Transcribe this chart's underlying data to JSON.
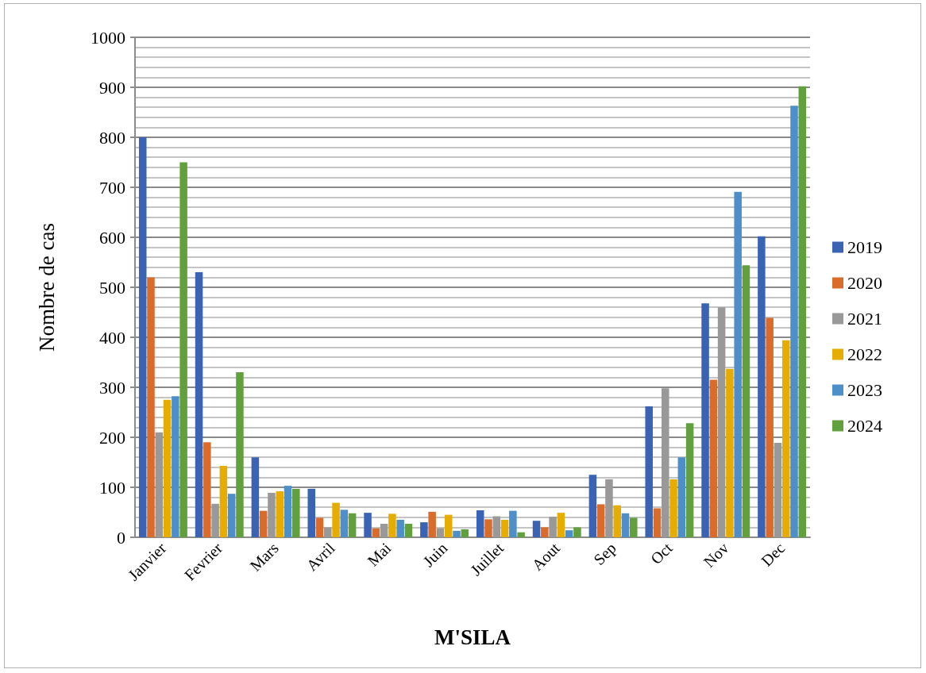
{
  "chart_data": {
    "type": "bar",
    "xlabel": "M'SILA",
    "ylabel": "Nombre de cas",
    "categories": [
      "Janvier",
      "Fevrier",
      "Mars",
      "Avril",
      "Mai",
      "Juin",
      "Juillet",
      "Aout",
      "Sep",
      "Oct",
      "Nov",
      "Dec"
    ],
    "series": [
      {
        "name": "2019",
        "color": "#3a63b3",
        "values": [
          800,
          530,
          160,
          97,
          49,
          30,
          54,
          33,
          125,
          262,
          468,
          602
        ]
      },
      {
        "name": "2020",
        "color": "#d96b2b",
        "values": [
          520,
          190,
          53,
          39,
          18,
          51,
          36,
          20,
          66,
          58,
          315,
          439
        ]
      },
      {
        "name": "2021",
        "color": "#999999",
        "values": [
          210,
          67,
          89,
          20,
          27,
          18,
          42,
          41,
          116,
          298,
          460,
          189
        ]
      },
      {
        "name": "2022",
        "color": "#e6ad00",
        "values": [
          275,
          143,
          92,
          69,
          47,
          45,
          35,
          49,
          64,
          116,
          337,
          394
        ]
      },
      {
        "name": "2023",
        "color": "#4e8fc9",
        "values": [
          282,
          87,
          103,
          55,
          35,
          13,
          53,
          14,
          48,
          160,
          691,
          863
        ]
      },
      {
        "name": "2024",
        "color": "#62a03e",
        "values": [
          750,
          330,
          97,
          48,
          27,
          16,
          10,
          20,
          39,
          228,
          544,
          902
        ]
      }
    ],
    "ylim": [
      0,
      1000
    ],
    "yticks": [
      0,
      {
        "value": 20,
        "label": null
      },
      {
        "value": 40,
        "label": null
      },
      {
        "value": 60,
        "label": null
      },
      {
        "value": 80,
        "label": null
      },
      100,
      {
        "value": 120,
        "label": null
      },
      {
        "value": 140,
        "label": null
      },
      {
        "value": 160,
        "label": null
      },
      {
        "value": 180,
        "label": null
      },
      200,
      {
        "value": 220,
        "label": null
      },
      {
        "value": 240,
        "label": null
      },
      {
        "value": 260,
        "label": null
      },
      {
        "value": 280,
        "label": null
      },
      300,
      {
        "value": 320,
        "label": null
      },
      {
        "value": 340,
        "label": null
      },
      {
        "value": 360,
        "label": null
      },
      {
        "value": 380,
        "label": null
      },
      400,
      {
        "value": 420,
        "label": null
      },
      {
        "value": 440,
        "label": null
      },
      {
        "value": 460,
        "label": null
      },
      {
        "value": 480,
        "label": null
      },
      500,
      {
        "value": 520,
        "label": null
      },
      {
        "value": 540,
        "label": null
      },
      {
        "value": 560,
        "label": null
      },
      {
        "value": 580,
        "label": null
      },
      600,
      {
        "value": 620,
        "label": null
      },
      {
        "value": 640,
        "label": null
      },
      {
        "value": 660,
        "label": null
      },
      {
        "value": 680,
        "label": null
      },
      700,
      {
        "value": 720,
        "label": null
      },
      {
        "value": 740,
        "label": null
      },
      {
        "value": 760,
        "label": null
      },
      {
        "value": 780,
        "label": null
      },
      800,
      {
        "value": 820,
        "label": null
      },
      {
        "value": 840,
        "label": null
      },
      {
        "value": 860,
        "label": null
      },
      {
        "value": 880,
        "label": null
      },
      900,
      {
        "value": 920,
        "label": null
      },
      {
        "value": 940,
        "label": null
      },
      {
        "value": 960,
        "label": null
      },
      {
        "value": 980,
        "label": null
      },
      1000
    ],
    "grid": true,
    "legend": "right"
  }
}
